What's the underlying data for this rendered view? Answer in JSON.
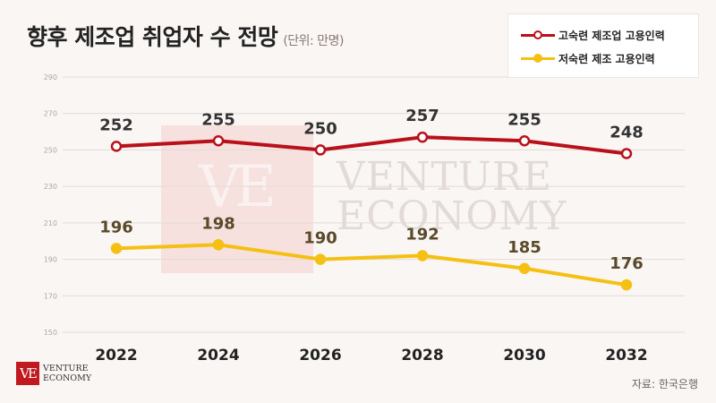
{
  "header": {
    "title": "향후 제조업 취업자 수 전망",
    "unit": "(단위: 만명)"
  },
  "legend": [
    {
      "label": "고숙련 제조업 고용인력",
      "color": "#b8111b"
    },
    {
      "label": "저숙련 제조 고용인력",
      "color": "#f5c013"
    }
  ],
  "watermark": {
    "mark": "VE",
    "line1": "VENTURE",
    "line2": "ECONOMY"
  },
  "logo": {
    "mark": "VE",
    "line1": "VENTURE",
    "line2": "ECONOMY"
  },
  "footer": {
    "source": "자료: 한국은행"
  },
  "chart_data": {
    "type": "line",
    "x": [
      "2022",
      "2024",
      "2026",
      "2028",
      "2030",
      "2032"
    ],
    "yticks": [
      150,
      170,
      190,
      210,
      230,
      250,
      270,
      290
    ],
    "ylim": [
      150,
      290
    ],
    "grid": true,
    "legend_position": "top-right",
    "series": [
      {
        "name": "고숙련 제조업 고용인력",
        "values": [
          252,
          255,
          250,
          257,
          255,
          248
        ],
        "color": "#b8111b",
        "label_color": "#333333"
      },
      {
        "name": "저숙련 제조 고용인력",
        "values": [
          196,
          198,
          190,
          192,
          185,
          176
        ],
        "color": "#f5c013",
        "label_color": "#5a4a2a"
      }
    ]
  }
}
